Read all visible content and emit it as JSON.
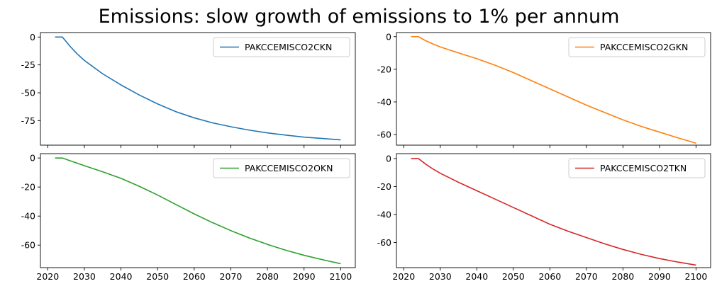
{
  "title": "Emissions: slow growth of emissions to 1% per annum",
  "chart_data": [
    {
      "type": "line",
      "title": "",
      "xlabel": "",
      "ylabel": "",
      "grid": false,
      "legend_position": "top-right",
      "xlim": [
        2018,
        2104
      ],
      "ylim": [
        -97,
        4
      ],
      "x_ticks": [
        2020,
        2030,
        2040,
        2050,
        2060,
        2070,
        2080,
        2090,
        2100
      ],
      "show_x_tick_labels": false,
      "y_ticks": [
        0,
        -25,
        -50,
        -75
      ],
      "series": [
        {
          "name": "PAKCCEMISCO2CKN",
          "color": "#1f77b4",
          "x": [
            2022,
            2023,
            2024,
            2026,
            2028,
            2030,
            2035,
            2040,
            2045,
            2050,
            2055,
            2060,
            2065,
            2070,
            2075,
            2080,
            2085,
            2090,
            2095,
            2100
          ],
          "y": [
            0,
            0,
            0,
            -8,
            -15,
            -21,
            -33,
            -43,
            -52,
            -60,
            -67,
            -72.5,
            -77,
            -80.5,
            -83.5,
            -86,
            -88,
            -89.8,
            -91,
            -92.3
          ]
        }
      ]
    },
    {
      "type": "line",
      "title": "",
      "xlabel": "",
      "ylabel": "",
      "grid": false,
      "legend_position": "top-right",
      "xlim": [
        2018,
        2104
      ],
      "ylim": [
        -66.5,
        2.5
      ],
      "x_ticks": [
        2020,
        2030,
        2040,
        2050,
        2060,
        2070,
        2080,
        2090,
        2100
      ],
      "show_x_tick_labels": false,
      "y_ticks": [
        0,
        -20,
        -40,
        -60
      ],
      "series": [
        {
          "name": "PAKCCEMISCO2GKN",
          "color": "#ff7f0e",
          "x": [
            2022,
            2023,
            2024,
            2026,
            2028,
            2030,
            2035,
            2040,
            2045,
            2050,
            2055,
            2060,
            2065,
            2070,
            2075,
            2080,
            2085,
            2090,
            2095,
            2100
          ],
          "y": [
            0,
            0,
            0,
            -2.5,
            -4.5,
            -6.3,
            -10,
            -13.5,
            -17.5,
            -22,
            -27,
            -32,
            -37,
            -42,
            -46.5,
            -51,
            -55,
            -58.5,
            -62,
            -65.3
          ]
        }
      ]
    },
    {
      "type": "line",
      "title": "",
      "xlabel": "",
      "ylabel": "",
      "grid": false,
      "legend_position": "top-right",
      "xlim": [
        2018,
        2104
      ],
      "ylim": [
        -75.5,
        3
      ],
      "x_ticks": [
        2020,
        2030,
        2040,
        2050,
        2060,
        2070,
        2080,
        2090,
        2100
      ],
      "show_x_tick_labels": true,
      "y_ticks": [
        0,
        -20,
        -40,
        -60
      ],
      "series": [
        {
          "name": "PAKCCEMISCO2OKN",
          "color": "#2ca02c",
          "x": [
            2022,
            2023,
            2024,
            2026,
            2028,
            2030,
            2035,
            2040,
            2045,
            2050,
            2055,
            2060,
            2065,
            2070,
            2075,
            2080,
            2085,
            2090,
            2095,
            2100
          ],
          "y": [
            0,
            0,
            0,
            -1.8,
            -3.5,
            -5.3,
            -9.5,
            -14,
            -19.5,
            -25.5,
            -32,
            -38.5,
            -44.5,
            -50,
            -55,
            -59.5,
            -63.5,
            -67,
            -70,
            -72.8
          ]
        }
      ]
    },
    {
      "type": "line",
      "title": "",
      "xlabel": "",
      "ylabel": "",
      "grid": false,
      "legend_position": "top-right",
      "xlim": [
        2018,
        2104
      ],
      "ylim": [
        -78,
        3.5
      ],
      "x_ticks": [
        2020,
        2030,
        2040,
        2050,
        2060,
        2070,
        2080,
        2090,
        2100
      ],
      "show_x_tick_labels": true,
      "y_ticks": [
        0,
        -20,
        -40,
        -60
      ],
      "series": [
        {
          "name": "PAKCCEMISCO2TKN",
          "color": "#d62728",
          "x": [
            2022,
            2023,
            2024,
            2026,
            2028,
            2030,
            2035,
            2040,
            2045,
            2050,
            2055,
            2060,
            2065,
            2070,
            2075,
            2080,
            2085,
            2090,
            2095,
            2100
          ],
          "y": [
            0,
            0,
            0,
            -4,
            -7.5,
            -10.5,
            -17,
            -23,
            -29,
            -35,
            -41,
            -47,
            -52,
            -56.5,
            -61,
            -65,
            -68.5,
            -71.5,
            -74,
            -76.2
          ]
        }
      ]
    }
  ]
}
